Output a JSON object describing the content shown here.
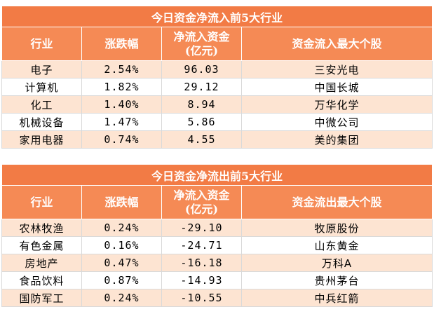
{
  "inflow": {
    "title": "今日资金净流入前5大行业",
    "headers": [
      "行业",
      "涨跌幅",
      "净流入资金\n(亿元)",
      "资金流入最大个股"
    ],
    "rows": [
      {
        "industry": "电子",
        "change": "2.54%",
        "amount": "96.03",
        "stock": "三安光电"
      },
      {
        "industry": "计算机",
        "change": "1.82%",
        "amount": "29.12",
        "stock": "中国长城"
      },
      {
        "industry": "化工",
        "change": "1.40%",
        "amount": "8.94",
        "stock": "万华化学"
      },
      {
        "industry": "机械设备",
        "change": "1.47%",
        "amount": "5.86",
        "stock": "中微公司"
      },
      {
        "industry": "家用电器",
        "change": "0.74%",
        "amount": "4.55",
        "stock": "美的集团"
      }
    ]
  },
  "outflow": {
    "title": "今日资金净流出前5大行业",
    "headers": [
      "行业",
      "涨跌幅",
      "净流入资金\n(亿元)",
      "资金流出最大个股"
    ],
    "rows": [
      {
        "industry": "农林牧渔",
        "change": "0.24%",
        "amount": "-29.10",
        "stock": "牧原股份"
      },
      {
        "industry": "有色金属",
        "change": "0.16%",
        "amount": "-24.71",
        "stock": "山东黄金"
      },
      {
        "industry": "房地产",
        "change": "0.47%",
        "amount": "-16.18",
        "stock": "万科A"
      },
      {
        "industry": "食品饮料",
        "change": "0.87%",
        "amount": "-14.93",
        "stock": "贵州茅台"
      },
      {
        "industry": "国防军工",
        "change": "0.24%",
        "amount": "-10.55",
        "stock": "中兵红箭"
      }
    ]
  },
  "colors": {
    "header_bg": "#f58a55",
    "title_bg": "#f27b45",
    "odd_row_bg": "#fde4d2",
    "even_row_bg": "#ffffff"
  }
}
